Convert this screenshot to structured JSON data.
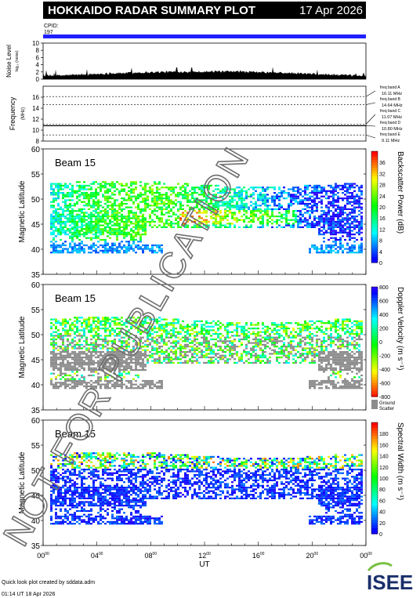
{
  "header": {
    "title": "HOKKAIDO RADAR SUMMARY PLOT",
    "date": "17 Apr 2026",
    "cpid_label": "CPID:",
    "cpid_value": "197"
  },
  "footer": {
    "credit": "Quick look plot created by sddata.adm",
    "timestamp": "01:14 UT 18 Apr 2026",
    "logo_text": "ISEE"
  },
  "watermark": "NOT FOR PUBLICATION",
  "colors": {
    "cpid_bar": "#2020ff",
    "ground_scatter": "#8c8c8c",
    "watermark": "#6e6e6e"
  },
  "chart_data": [
    {
      "type": "area",
      "panel": "noise",
      "ylabel": "Noise Level",
      "ylabel2": "log₁₀ (noise)",
      "ylim": [
        0,
        10
      ],
      "yticks": [
        "0",
        "2",
        "4",
        "6",
        "8",
        "10"
      ],
      "description_values": "noise level approximately 1.0 to 2.8 across the day"
    },
    {
      "type": "line",
      "panel": "frequency",
      "ylabel": "Frequency",
      "yunit": "(MHz)",
      "ylim": [
        8,
        18
      ],
      "yticks": [
        "8",
        "10",
        "12",
        "14",
        "16"
      ],
      "freq_bands": [
        {
          "label": "freq band A",
          "value": "16.11 MHz",
          "freq": 16.11
        },
        {
          "label": "freq band B",
          "value": "14.64 MHz",
          "freq": 14.64
        },
        {
          "label": "freq band C",
          "value": "11.07 MHz",
          "freq": 11.07
        },
        {
          "label": "freq band D",
          "value": "10.80 MHz",
          "freq": 10.8
        },
        {
          "label": "freq band E",
          "value": "9.11 MHz",
          "freq": 9.11
        }
      ],
      "operating_freq": [
        {
          "from": 0,
          "to": 24,
          "freq": 10.8
        }
      ]
    },
    {
      "type": "heatmap",
      "panel": "power",
      "beam_label": "Beam 15",
      "ylabel": "Magnetic Latitude",
      "ylim": [
        35,
        60
      ],
      "yticks": [
        "35",
        "40",
        "45",
        "50",
        "55",
        "60"
      ],
      "colorbar_label": "Backscatter Power (dB)",
      "colorbar_ticks": [
        "0",
        "4",
        "8",
        "12",
        "16",
        "20",
        "24",
        "28",
        "32",
        "36"
      ],
      "crange": [
        0,
        40
      ]
    },
    {
      "type": "heatmap",
      "panel": "velocity",
      "beam_label": "Beam 15",
      "ylabel": "Magnetic Latitude",
      "ylim": [
        35,
        60
      ],
      "yticks": [
        "35",
        "40",
        "45",
        "50",
        "55",
        "60"
      ],
      "colorbar_label": "Doppler Velocity (m s⁻¹)",
      "colorbar_ticks": [
        "800",
        "600",
        "400",
        "200",
        "0",
        "-200",
        "-400",
        "-600",
        "-800"
      ],
      "crange": [
        -800,
        800
      ],
      "ground_scatter_label1": "Ground",
      "ground_scatter_label2": "Scatter"
    },
    {
      "type": "heatmap",
      "panel": "width",
      "beam_label": "Beam 15",
      "ylabel": "Magnetic Latitude",
      "ylim": [
        35,
        60
      ],
      "yticks": [
        "35",
        "40",
        "45",
        "50",
        "55",
        "60"
      ],
      "colorbar_label": "Spectral Width (m s⁻¹)",
      "colorbar_ticks": [
        "0",
        "20",
        "40",
        "60",
        "80",
        "100",
        "120",
        "140",
        "160",
        "180"
      ],
      "crange": [
        0,
        200
      ],
      "xlabel": "UT",
      "xlim": [
        0,
        24
      ],
      "xticks": [
        "00",
        "04",
        "08",
        "12",
        "16",
        "20",
        "00"
      ],
      "xtick_sup": "00"
    }
  ]
}
